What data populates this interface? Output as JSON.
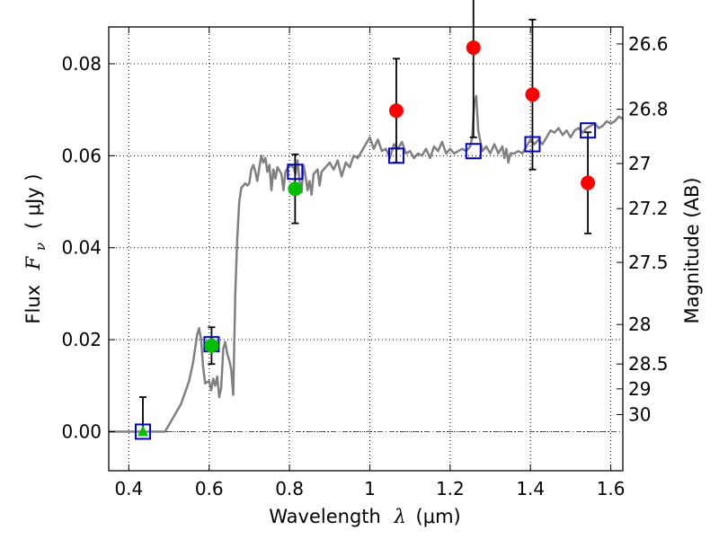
{
  "chart_data": {
    "type": "scatter",
    "xlabel_text": "Wavelength",
    "xlabel_symbol": "λ",
    "xlabel_unit": "(μm)",
    "ylabel_text": "Flux",
    "ylabel_symbol": "F",
    "ylabel_sub": "ν",
    "ylabel_unit": "( μJy )",
    "right_label": "Magnitude (AB)",
    "xlim": [
      0.35,
      1.63
    ],
    "ylim": [
      -0.0085,
      0.088
    ],
    "grid": true,
    "x_ticks": [
      0.4,
      0.6,
      0.8,
      1.0,
      1.2,
      1.4,
      1.6
    ],
    "x_tick_labels": [
      "0.4",
      "0.6",
      "0.8",
      "1",
      "1.2",
      "1.4",
      "1.6"
    ],
    "y_ticks": [
      0.0,
      0.02,
      0.04,
      0.06,
      0.08
    ],
    "y_tick_labels": [
      "0.00",
      "0.02",
      "0.04",
      "0.06",
      "0.08"
    ],
    "right_ticks": [
      {
        "label": "26.6",
        "flux": 0.0843
      },
      {
        "label": "26.8",
        "flux": 0.0701
      },
      {
        "label": "27",
        "flux": 0.0583
      },
      {
        "label": "27.2",
        "flux": 0.0485
      },
      {
        "label": "27.5",
        "flux": 0.0368
      },
      {
        "label": "28",
        "flux": 0.0233
      },
      {
        "label": "28.5",
        "flux": 0.0147
      },
      {
        "label": "29",
        "flux": 0.0093
      },
      {
        "label": "30",
        "flux": 0.0037
      }
    ],
    "zero_line": 0.0,
    "series": [
      {
        "kind": "model_sed_line",
        "color": "#808080",
        "points": [
          [
            0.35,
            0.0
          ],
          [
            0.49,
            0.0
          ],
          [
            0.51,
            0.003
          ],
          [
            0.53,
            0.006
          ],
          [
            0.55,
            0.011
          ],
          [
            0.56,
            0.015
          ],
          [
            0.57,
            0.021
          ],
          [
            0.575,
            0.0225
          ],
          [
            0.58,
            0.02
          ],
          [
            0.585,
            0.014
          ],
          [
            0.59,
            0.0105
          ],
          [
            0.6,
            0.011
          ],
          [
            0.605,
            0.009
          ],
          [
            0.61,
            0.0115
          ],
          [
            0.615,
            0.01
          ],
          [
            0.62,
            0.012
          ],
          [
            0.625,
            0.0075
          ],
          [
            0.63,
            0.0095
          ],
          [
            0.635,
            0.018
          ],
          [
            0.64,
            0.0195
          ],
          [
            0.645,
            0.017
          ],
          [
            0.65,
            0.0155
          ],
          [
            0.655,
            0.0135
          ],
          [
            0.66,
            0.008
          ],
          [
            0.665,
            0.03
          ],
          [
            0.67,
            0.042
          ],
          [
            0.675,
            0.05
          ],
          [
            0.68,
            0.053
          ],
          [
            0.69,
            0.054
          ],
          [
            0.695,
            0.0535
          ],
          [
            0.7,
            0.054
          ],
          [
            0.705,
            0.057
          ],
          [
            0.71,
            0.058
          ],
          [
            0.715,
            0.0565
          ],
          [
            0.72,
            0.0545
          ],
          [
            0.725,
            0.0575
          ],
          [
            0.73,
            0.06
          ],
          [
            0.735,
            0.0585
          ],
          [
            0.74,
            0.0595
          ],
          [
            0.745,
            0.0565
          ],
          [
            0.75,
            0.058
          ],
          [
            0.755,
            0.0525
          ],
          [
            0.76,
            0.057
          ],
          [
            0.765,
            0.055
          ],
          [
            0.77,
            0.0575
          ],
          [
            0.78,
            0.056
          ],
          [
            0.785,
            0.0525
          ],
          [
            0.79,
            0.0565
          ],
          [
            0.8,
            0.058
          ],
          [
            0.81,
            0.0575
          ],
          [
            0.815,
            0.056
          ],
          [
            0.82,
            0.059
          ],
          [
            0.825,
            0.0545
          ],
          [
            0.83,
            0.052
          ],
          [
            0.835,
            0.058
          ],
          [
            0.84,
            0.0555
          ],
          [
            0.845,
            0.0525
          ],
          [
            0.85,
            0.0545
          ],
          [
            0.855,
            0.0515
          ],
          [
            0.86,
            0.056
          ],
          [
            0.87,
            0.057
          ],
          [
            0.875,
            0.0535
          ],
          [
            0.88,
            0.0565
          ],
          [
            0.89,
            0.0575
          ],
          [
            0.9,
            0.0585
          ],
          [
            0.91,
            0.057
          ],
          [
            0.92,
            0.059
          ],
          [
            0.93,
            0.0555
          ],
          [
            0.94,
            0.0585
          ],
          [
            0.95,
            0.0575
          ],
          [
            0.96,
            0.06
          ],
          [
            0.97,
            0.0595
          ],
          [
            0.98,
            0.061
          ],
          [
            0.99,
            0.0625
          ],
          [
            1.0,
            0.064
          ],
          [
            1.01,
            0.0615
          ],
          [
            1.02,
            0.0635
          ],
          [
            1.03,
            0.061
          ],
          [
            1.04,
            0.0615
          ],
          [
            1.05,
            0.0595
          ],
          [
            1.06,
            0.0625
          ],
          [
            1.07,
            0.0615
          ],
          [
            1.08,
            0.063
          ],
          [
            1.09,
            0.0605
          ],
          [
            1.1,
            0.061
          ],
          [
            1.11,
            0.0595
          ],
          [
            1.12,
            0.0605
          ],
          [
            1.13,
            0.06
          ],
          [
            1.14,
            0.0615
          ],
          [
            1.15,
            0.0595
          ],
          [
            1.16,
            0.062
          ],
          [
            1.17,
            0.061
          ],
          [
            1.18,
            0.063
          ],
          [
            1.19,
            0.0605
          ],
          [
            1.2,
            0.0615
          ],
          [
            1.21,
            0.0605
          ],
          [
            1.22,
            0.061
          ],
          [
            1.23,
            0.0615
          ],
          [
            1.24,
            0.061
          ],
          [
            1.25,
            0.062
          ],
          [
            1.255,
            0.064
          ],
          [
            1.26,
            0.0715
          ],
          [
            1.265,
            0.073
          ],
          [
            1.27,
            0.0655
          ],
          [
            1.28,
            0.061
          ],
          [
            1.29,
            0.062
          ],
          [
            1.3,
            0.0605
          ],
          [
            1.31,
            0.0625
          ],
          [
            1.32,
            0.0605
          ],
          [
            1.33,
            0.062
          ],
          [
            1.335,
            0.0595
          ],
          [
            1.34,
            0.0615
          ],
          [
            1.345,
            0.0585
          ],
          [
            1.35,
            0.0605
          ],
          [
            1.36,
            0.0605
          ],
          [
            1.37,
            0.061
          ],
          [
            1.38,
            0.0605
          ],
          [
            1.39,
            0.062
          ],
          [
            1.4,
            0.0635
          ],
          [
            1.41,
            0.0625
          ],
          [
            1.42,
            0.0635
          ],
          [
            1.43,
            0.0625
          ],
          [
            1.44,
            0.064
          ],
          [
            1.45,
            0.0655
          ],
          [
            1.46,
            0.065
          ],
          [
            1.47,
            0.066
          ],
          [
            1.48,
            0.0645
          ],
          [
            1.49,
            0.0655
          ],
          [
            1.5,
            0.064
          ],
          [
            1.51,
            0.0655
          ],
          [
            1.52,
            0.066
          ],
          [
            1.53,
            0.065
          ],
          [
            1.54,
            0.066
          ],
          [
            1.55,
            0.0665
          ],
          [
            1.56,
            0.067
          ],
          [
            1.57,
            0.066
          ],
          [
            1.58,
            0.0665
          ],
          [
            1.59,
            0.0675
          ],
          [
            1.6,
            0.067
          ],
          [
            1.61,
            0.0675
          ],
          [
            1.62,
            0.0685
          ],
          [
            1.63,
            0.068
          ]
        ]
      },
      {
        "kind": "model_photometry",
        "marker": "open-square",
        "color": "#0000cc",
        "x": [
          0.435,
          0.606,
          0.814,
          1.066,
          1.258,
          1.405,
          1.543
        ],
        "y": [
          0.0,
          0.019,
          0.0565,
          0.06,
          0.061,
          0.0625,
          0.0655
        ]
      },
      {
        "kind": "detections",
        "marker": "filled-circle",
        "color": "#00c000",
        "x": [
          0.606,
          0.814
        ],
        "y": [
          0.0187,
          0.0528
        ],
        "err": [
          0.004,
          0.0075
        ]
      },
      {
        "kind": "detections",
        "marker": "filled-circle",
        "color": "#ff0000",
        "x": [
          1.066,
          1.258,
          1.405,
          1.543
        ],
        "y": [
          0.0698,
          0.0835,
          0.0733,
          0.0541
        ],
        "err": [
          0.0113,
          0.0195,
          0.0163,
          0.011
        ]
      },
      {
        "kind": "upper_limit",
        "marker": "filled-triangle",
        "color": "#00c000",
        "x": [
          0.435
        ],
        "y": [
          0.0
        ],
        "err_up": [
          0.0075
        ]
      }
    ]
  }
}
